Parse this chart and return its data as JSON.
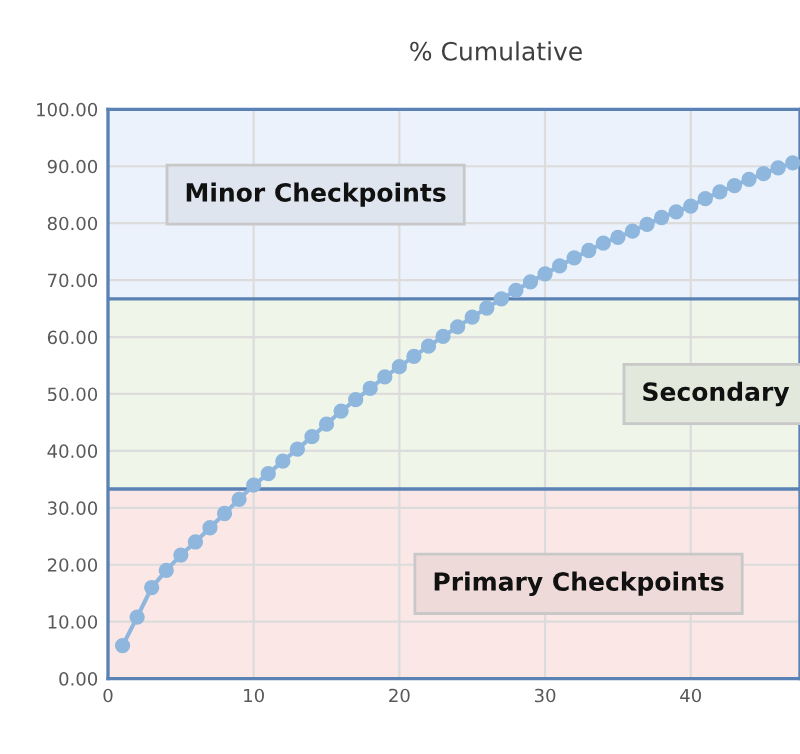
{
  "chart_data": {
    "type": "line",
    "title": "% Cumulative",
    "x": [
      1,
      2,
      3,
      4,
      5,
      6,
      7,
      8,
      9,
      10,
      11,
      12,
      13,
      14,
      15,
      16,
      17,
      18,
      19,
      20,
      21,
      22,
      23,
      24,
      25,
      26,
      27,
      28,
      29,
      30,
      31,
      32,
      33,
      34,
      35,
      36,
      37,
      38,
      39,
      40,
      41,
      42,
      43,
      44,
      45,
      46,
      47
    ],
    "series": [
      {
        "color": "#8fb7de",
        "values": [
          5.8,
          10.8,
          16,
          19,
          21.7,
          24,
          26.5,
          29,
          31.5,
          34,
          36,
          38.2,
          40.3,
          42.5,
          44.7,
          47,
          49,
          51,
          53,
          54.8,
          56.6,
          58.4,
          60.1,
          61.8,
          63.5,
          65.1,
          66.7,
          68.2,
          69.7,
          71.1,
          72.5,
          73.9,
          75.2,
          76.5,
          77.5,
          78.6,
          79.8,
          81,
          82,
          83,
          84.3,
          85.5,
          86.6,
          87.7,
          88.7,
          89.7,
          90.6
        ]
      }
    ],
    "xlim": [
      0,
      47.5
    ],
    "xticks": [
      0,
      10,
      20,
      30,
      40
    ],
    "ylim": [
      0,
      100
    ],
    "yticks": [
      {
        "value": 0,
        "label": "0.00"
      },
      {
        "value": 10,
        "label": "10.00"
      },
      {
        "value": 20,
        "label": "20.00"
      },
      {
        "value": 30,
        "label": "30.00"
      },
      {
        "value": 40,
        "label": "40.00"
      },
      {
        "value": 50,
        "label": "50.00"
      },
      {
        "value": 60,
        "label": "60.00"
      },
      {
        "value": 70,
        "label": "70.00"
      },
      {
        "value": 80,
        "label": "80.00"
      },
      {
        "value": 90,
        "label": "90.00"
      },
      {
        "value": 100,
        "label": "100.00"
      }
    ],
    "bands": [
      {
        "axis": "y",
        "from": 0,
        "to": 33.3,
        "label": "Primary Checkpoints",
        "color": "#fbe8e6"
      },
      {
        "axis": "y",
        "from": 33.3,
        "to": 66.7,
        "label": "Secondary",
        "color": "#eff5e9"
      },
      {
        "axis": "y",
        "from": 66.7,
        "to": 100,
        "label": "Minor Checkpoints",
        "color": "#ebf2fb"
      }
    ],
    "ref_lines": [
      {
        "axis": "y",
        "value": 33.3,
        "color": "#5a82b4"
      },
      {
        "axis": "y",
        "value": 66.7,
        "color": "#5a82b4"
      }
    ],
    "grid": true,
    "marker": "circle",
    "line_style": "solid"
  }
}
